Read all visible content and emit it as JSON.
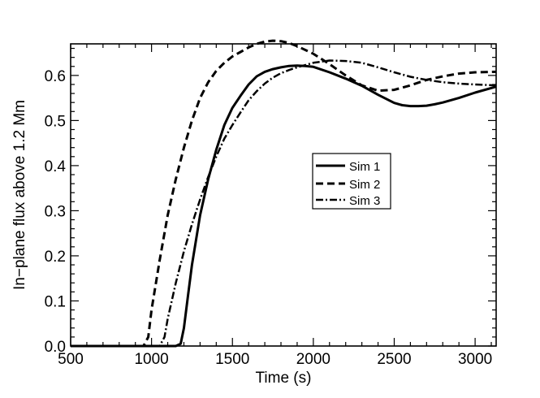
{
  "chart_data": {
    "type": "line",
    "title": "",
    "xlabel": "Time (s)",
    "ylabel": "In−plane flux above 1.2 Mm",
    "xlim": [
      500,
      3130
    ],
    "ylim": [
      0.0,
      0.67
    ],
    "x_ticks": [
      500,
      1000,
      1500,
      2000,
      2500,
      3000
    ],
    "y_ticks": [
      0.0,
      0.1,
      0.2,
      0.3,
      0.4,
      0.5,
      0.6
    ],
    "x_tick_labels": [
      "500",
      "1000",
      "1500",
      "2000",
      "2500",
      "3000"
    ],
    "y_tick_labels": [
      "0.0",
      "0.1",
      "0.2",
      "0.3",
      "0.4",
      "0.5",
      "0.6"
    ],
    "legend_position": "center-right",
    "grid": false,
    "series": [
      {
        "name": "Sim 1",
        "style": "solid",
        "x": [
          500,
          1000,
          1150,
          1180,
          1200,
          1225,
          1250,
          1300,
          1350,
          1400,
          1450,
          1500,
          1550,
          1600,
          1650,
          1700,
          1750,
          1800,
          1850,
          1900,
          1950,
          2000,
          2100,
          2200,
          2300,
          2400,
          2500,
          2550,
          2600,
          2650,
          2700,
          2750,
          2800,
          2900,
          3000,
          3130
        ],
        "y": [
          0.0,
          0.0,
          0.0,
          0.005,
          0.04,
          0.11,
          0.18,
          0.29,
          0.37,
          0.435,
          0.49,
          0.528,
          0.555,
          0.58,
          0.598,
          0.608,
          0.614,
          0.618,
          0.621,
          0.622,
          0.621,
          0.619,
          0.607,
          0.593,
          0.577,
          0.557,
          0.539,
          0.534,
          0.532,
          0.532,
          0.533,
          0.536,
          0.54,
          0.55,
          0.562,
          0.575
        ]
      },
      {
        "name": "Sim 2",
        "style": "dashed",
        "x": [
          500,
          950,
          980,
          1000,
          1050,
          1100,
          1150,
          1200,
          1250,
          1300,
          1350,
          1400,
          1450,
          1500,
          1550,
          1600,
          1650,
          1700,
          1750,
          1800,
          1850,
          1900,
          2000,
          2100,
          2200,
          2300,
          2400,
          2500,
          2600,
          2700,
          2800,
          2900,
          3000,
          3130
        ],
        "y": [
          0.0,
          0.0,
          0.02,
          0.08,
          0.19,
          0.29,
          0.37,
          0.44,
          0.5,
          0.55,
          0.585,
          0.61,
          0.628,
          0.642,
          0.652,
          0.662,
          0.67,
          0.675,
          0.677,
          0.676,
          0.672,
          0.665,
          0.648,
          0.625,
          0.6,
          0.578,
          0.566,
          0.568,
          0.578,
          0.59,
          0.598,
          0.604,
          0.607,
          0.608
        ]
      },
      {
        "name": "Sim 3",
        "style": "dashdot",
        "x": [
          500,
          1050,
          1080,
          1100,
          1150,
          1200,
          1250,
          1300,
          1350,
          1400,
          1450,
          1500,
          1550,
          1600,
          1650,
          1700,
          1750,
          1800,
          1850,
          1900,
          1950,
          2000,
          2100,
          2200,
          2300,
          2400,
          2500,
          2600,
          2700,
          2800,
          2900,
          3000,
          3130
        ],
        "y": [
          0.0,
          0.0,
          0.02,
          0.06,
          0.14,
          0.21,
          0.27,
          0.325,
          0.375,
          0.42,
          0.46,
          0.49,
          0.518,
          0.545,
          0.565,
          0.582,
          0.595,
          0.605,
          0.612,
          0.618,
          0.623,
          0.628,
          0.633,
          0.632,
          0.628,
          0.618,
          0.607,
          0.597,
          0.59,
          0.585,
          0.582,
          0.58,
          0.578
        ]
      }
    ]
  }
}
